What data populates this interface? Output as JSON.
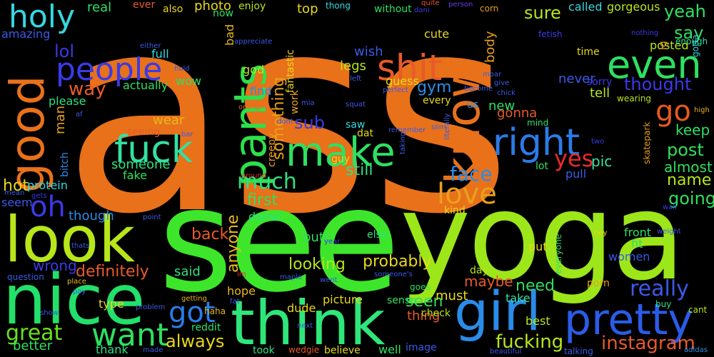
{
  "background": "#000000",
  "words": [
    {
      "text": "ass",
      "color": "#e8711a"
    },
    {
      "text": "see",
      "color": "#3de62a"
    },
    {
      "text": "yoga",
      "color": "#9de61a"
    },
    {
      "text": "nice",
      "color": "#22e06a"
    },
    {
      "text": "look",
      "color": "#b8e61a"
    },
    {
      "text": "think",
      "color": "#2ee67a"
    },
    {
      "text": "know",
      "color": "#e8711a"
    },
    {
      "text": "pants",
      "color": "#2de04a"
    },
    {
      "text": "girl",
      "color": "#2a8ce8"
    },
    {
      "text": "pretty",
      "color": "#2a5ce8"
    },
    {
      "text": "make",
      "color": "#2ee060"
    },
    {
      "text": "even",
      "color": "#2ee060"
    },
    {
      "text": "good",
      "color": "#e8711a"
    },
    {
      "text": "fuck",
      "color": "#34e0a0"
    },
    {
      "text": "right",
      "color": "#2a7ce8"
    },
    {
      "text": "shit",
      "color": "#e85a2a"
    },
    {
      "text": "holy",
      "color": "#34d8e0"
    },
    {
      "text": "people",
      "color": "#3a3ae8"
    },
    {
      "text": "want",
      "color": "#2ee060"
    },
    {
      "text": "got",
      "color": "#2a7ce8"
    },
    {
      "text": "love",
      "color": "#e8a01a"
    },
    {
      "text": "oh",
      "color": "#3a3ae8"
    },
    {
      "text": "go",
      "color": "#e85a1a"
    },
    {
      "text": "really",
      "color": "#3a5ae8"
    },
    {
      "text": "great",
      "color": "#6ae01a"
    },
    {
      "text": "much",
      "color": "#2ee080"
    },
    {
      "text": "face",
      "color": "#2a8ce8"
    },
    {
      "text": "instagram",
      "color": "#e85a2a"
    },
    {
      "text": "yes",
      "color": "#e82a2a"
    },
    {
      "text": "fucking",
      "color": "#b8e61a"
    },
    {
      "text": "always",
      "color": "#e8d81a"
    },
    {
      "text": "going",
      "color": "#2ee060"
    },
    {
      "text": "post",
      "color": "#2ee060"
    },
    {
      "text": "say",
      "color": "#2ee060"
    },
    {
      "text": "yeah",
      "color": "#2ee060"
    },
    {
      "text": "sure",
      "color": "#b8e61a"
    },
    {
      "text": "something",
      "color": "#e8a01a"
    },
    {
      "text": "lol",
      "color": "#3a3ae8"
    },
    {
      "text": "way",
      "color": "#e85a2a"
    },
    {
      "text": "thought",
      "color": "#3a3ae8"
    },
    {
      "text": "first",
      "color": "#2ee060"
    },
    {
      "text": "anyone",
      "color": "#e8b81a"
    },
    {
      "text": "gym",
      "color": "#2a8ce8"
    },
    {
      "text": "sub",
      "color": "#3a3ae8"
    },
    {
      "text": "still",
      "color": "#2ee080"
    },
    {
      "text": "probably",
      "color": "#e8d81a"
    },
    {
      "text": "looking",
      "color": "#b8e61a"
    },
    {
      "text": "definitely",
      "color": "#e85a2a"
    },
    {
      "text": "wrong",
      "color": "#3a3ae8"
    },
    {
      "text": "name",
      "color": "#b8e61a"
    },
    {
      "text": "almost",
      "color": "#2ee060"
    },
    {
      "text": "keep",
      "color": "#2ee060"
    },
    {
      "text": "seen",
      "color": "#2ee060"
    },
    {
      "text": "need",
      "color": "#2ee060"
    },
    {
      "text": "maybe",
      "color": "#e85a2a"
    },
    {
      "text": "back",
      "color": "#e85a2a"
    },
    {
      "text": "hot",
      "color": "#e8d81a"
    },
    {
      "text": "amazing",
      "color": "#3a5ae8"
    },
    {
      "text": "wear",
      "color": "#e8b81a"
    },
    {
      "text": "someone",
      "color": "#2ee080"
    },
    {
      "text": "new",
      "color": "#2ee060"
    },
    {
      "text": "gonna",
      "color": "#e85a2a"
    },
    {
      "text": "pic",
      "color": "#34e0a0"
    },
    {
      "text": "legs",
      "color": "#b8e61a"
    },
    {
      "text": "wish",
      "color": "#3a5ae8"
    },
    {
      "text": "cute",
      "color": "#e8d81a"
    },
    {
      "text": "top",
      "color": "#e8d81a"
    },
    {
      "text": "body",
      "color": "#e8a01a"
    },
    {
      "text": "never",
      "color": "#3a5ae8"
    },
    {
      "text": "tell",
      "color": "#b8e61a"
    },
    {
      "text": "man",
      "color": "#e8a01a"
    },
    {
      "text": "photo",
      "color": "#e8d81a"
    },
    {
      "text": "real",
      "color": "#2ee060"
    },
    {
      "text": "enjoy",
      "color": "#b8e61a"
    },
    {
      "text": "called",
      "color": "#34d8e0"
    },
    {
      "text": "gorgeous",
      "color": "#b8e61a"
    },
    {
      "text": "posted",
      "color": "#b8e61a"
    },
    {
      "text": "enough",
      "color": "#34e0a0"
    },
    {
      "text": "time",
      "color": "#e8d81a"
    },
    {
      "text": "sorry",
      "color": "#3a3ae8"
    },
    {
      "text": "wearing",
      "color": "#b8e61a"
    },
    {
      "text": "actually",
      "color": "#2ee060"
    },
    {
      "text": "please",
      "color": "#2ee080"
    },
    {
      "text": "full",
      "color": "#34d8e0"
    },
    {
      "text": "wow",
      "color": "#2ee060"
    },
    {
      "text": "fake",
      "color": "#2ee060"
    },
    {
      "text": "protein",
      "color": "#34d8e0"
    },
    {
      "text": "though",
      "color": "#2a8ce8"
    },
    {
      "text": "seem",
      "color": "#3a5ae8"
    },
    {
      "text": "said",
      "color": "#2ee080"
    },
    {
      "text": "hope",
      "color": "#e8b81a"
    },
    {
      "text": "butt",
      "color": "#2ee060"
    },
    {
      "text": "damn",
      "color": "#2ee080"
    },
    {
      "text": "picture",
      "color": "#e8d81a"
    },
    {
      "text": "must",
      "color": "#e8d81a"
    },
    {
      "text": "take",
      "color": "#34e0a0"
    },
    {
      "text": "best",
      "color": "#b8e61a"
    },
    {
      "text": "put",
      "color": "#e8d81a"
    },
    {
      "text": "fit",
      "color": "#2ee060"
    },
    {
      "text": "front",
      "color": "#2ee060"
    },
    {
      "text": "women",
      "color": "#3a5ae8"
    },
    {
      "text": "porn",
      "color": "#e8a01a"
    },
    {
      "text": "kind",
      "color": "#e8d81a"
    },
    {
      "text": "day",
      "color": "#b8e61a"
    },
    {
      "text": "else",
      "color": "#2ee080"
    },
    {
      "text": "thing",
      "color": "#e85a2a"
    },
    {
      "text": "check",
      "color": "#b8e61a"
    },
    {
      "text": "type",
      "color": "#e8d81a"
    },
    {
      "text": "sense",
      "color": "#2ee060"
    },
    {
      "text": "dude",
      "color": "#e8d81a"
    },
    {
      "text": "better",
      "color": "#2ee060"
    },
    {
      "text": "thank",
      "color": "#2ee080"
    },
    {
      "text": "took",
      "color": "#2ee080"
    },
    {
      "text": "believe",
      "color": "#e8d81a"
    },
    {
      "text": "well",
      "color": "#2ee060"
    },
    {
      "text": "image",
      "color": "#3a5ae8"
    },
    {
      "text": "pull",
      "color": "#3a5ae8"
    },
    {
      "text": "lot",
      "color": "#2ee060"
    },
    {
      "text": "guess",
      "color": "#e8d81a"
    },
    {
      "text": "find",
      "color": "#2a8ce8"
    },
    {
      "text": "god",
      "color": "#b8e61a"
    },
    {
      "text": "bad",
      "color": "#e8b81a"
    },
    {
      "text": "now",
      "color": "#2ee060"
    },
    {
      "text": "ever",
      "color": "#e85a2a"
    },
    {
      "text": "also",
      "color": "#e8d81a"
    },
    {
      "text": "work",
      "color": "#e8a01a"
    },
    {
      "text": "creepy",
      "color": "#e8a01a"
    },
    {
      "text": "fantastic",
      "color": "#e8d81a"
    },
    {
      "text": "every",
      "color": "#e8d81a"
    },
    {
      "text": "us",
      "color": "#2a8ce8"
    },
    {
      "text": "guy",
      "color": "#e8d81a"
    },
    {
      "text": "saw",
      "color": "#34d8e0"
    },
    {
      "text": "dat",
      "color": "#e8d81a"
    },
    {
      "text": "bitch",
      "color": "#2a8ce8"
    },
    {
      "text": "without",
      "color": "#2ee060"
    },
    {
      "text": "thong",
      "color": "#34d8e0"
    },
    {
      "text": "corn",
      "color": "#e8a01a"
    },
    {
      "text": "person",
      "color": "#6a3ae8"
    },
    {
      "text": "dani",
      "color": "#3a3ae8"
    },
    {
      "text": "quite",
      "color": "#e85a2a"
    },
    {
      "text": "fetish",
      "color": "#3a3ae8"
    },
    {
      "text": "nothing",
      "color": "#3a3ae8"
    },
    {
      "text": "gotta",
      "color": "#34d8e0"
    },
    {
      "text": "ig",
      "color": "#e8a01a"
    },
    {
      "text": "high",
      "color": "#e8b81a"
    },
    {
      "text": "skatepark",
      "color": "#e8a01a"
    },
    {
      "text": "two",
      "color": "#3a3ae8"
    },
    {
      "text": "wall",
      "color": "#3a3ae8"
    },
    {
      "text": "weight",
      "color": "#3a5ae8"
    },
    {
      "text": "hey",
      "color": "#e8d81a"
    },
    {
      "text": "everyone",
      "color": "#2ee060"
    },
    {
      "text": "cant",
      "color": "#b8e61a"
    },
    {
      "text": "buy",
      "color": "#2ee080"
    },
    {
      "text": "adidas",
      "color": "#2a8ce8"
    },
    {
      "text": "talking",
      "color": "#3a5ae8"
    },
    {
      "text": "beautiful",
      "color": "#3a5ae8"
    },
    {
      "text": "wedgie",
      "color": "#e85a2a"
    },
    {
      "text": "next",
      "color": "#3a5ae8"
    },
    {
      "text": "made",
      "color": "#3a5ae8"
    },
    {
      "text": "problem",
      "color": "#3a5ae8"
    },
    {
      "text": "reddit",
      "color": "#2ee060"
    },
    {
      "text": "haha",
      "color": "#e8b81a"
    },
    {
      "text": "getting",
      "color": "#e8b81a"
    },
    {
      "text": "fat",
      "color": "#3a5ae8"
    },
    {
      "text": "went",
      "color": "#3a5ae8"
    },
    {
      "text": "goes",
      "color": "#2ee060"
    },
    {
      "text": "maple",
      "color": "#3a5ae8"
    },
    {
      "text": "im",
      "color": "#e82a2a"
    },
    {
      "text": "someone's",
      "color": "#3a5ae8"
    },
    {
      "text": "year",
      "color": "#3a3ae8"
    },
    {
      "text": "point",
      "color": "#3a5ae8"
    },
    {
      "text": "thats",
      "color": "#3a5ae8"
    },
    {
      "text": "question",
      "color": "#3a5ae8"
    },
    {
      "text": "place",
      "color": "#e8b81a"
    },
    {
      "text": "pay",
      "color": "#3a5ae8"
    },
    {
      "text": "show",
      "color": "#3a5ae8"
    },
    {
      "text": "mean",
      "color": "#3a5ae8"
    },
    {
      "text": "gets",
      "color": "#3a3ae8"
    },
    {
      "text": "around",
      "color": "#e82a2a"
    },
    {
      "text": "bar",
      "color": "#3a5ae8"
    },
    {
      "text": "seeing",
      "color": "#e85a2a"
    },
    {
      "text": "dont",
      "color": "#3a5ae8"
    },
    {
      "text": "mia",
      "color": "#3a5ae8"
    },
    {
      "text": "orange",
      "color": "#e8711a"
    },
    {
      "text": "appreciate",
      "color": "#3a5ae8"
    },
    {
      "text": "either",
      "color": "#3a5ae8"
    },
    {
      "text": "hold",
      "color": "#3a5ae8"
    },
    {
      "text": "af",
      "color": "#3a5ae8"
    },
    {
      "text": "left",
      "color": "#3a5ae8"
    },
    {
      "text": "squat",
      "color": "#3a5ae8"
    },
    {
      "text": "perfect",
      "color": "#3a5ae8"
    },
    {
      "text": "become",
      "color": "#3a5ae8"
    },
    {
      "text": "chick",
      "color": "#3a5ae8"
    },
    {
      "text": "give",
      "color": "#3a5ae8"
    },
    {
      "text": "moar",
      "color": "#3a5ae8"
    },
    {
      "text": "mind",
      "color": "#2ee060"
    },
    {
      "text": "slim",
      "color": "#3a5ae8"
    },
    {
      "text": "literally",
      "color": "#3a5ae8"
    },
    {
      "text": "remember",
      "color": "#3a5ae8"
    },
    {
      "text": "taking",
      "color": "#3a5ae8"
    }
  ]
}
